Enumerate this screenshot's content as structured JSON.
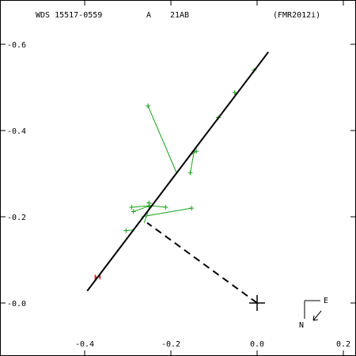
{
  "header": {
    "wds": "WDS 15517-0559",
    "component_letter": "A",
    "pair": "21AB",
    "reference": "(FMR2012i)"
  },
  "compass": {
    "east_label": "E",
    "north_label": "N"
  },
  "colors": {
    "orbit": "#000000",
    "observation": "#1aa01a",
    "outlier": "#e02020"
  },
  "chart_data": {
    "type": "scatter",
    "title": "",
    "xlabel": "",
    "ylabel": "",
    "xlim": [
      -0.6,
      0.22
    ],
    "ylim": [
      -0.12,
      0.68
    ],
    "xticks": [
      -0.4,
      -0.2,
      0.0,
      0.2
    ],
    "xtick_labels": [
      "-0.4",
      "-0.2",
      "0.0",
      "0.2"
    ],
    "yticks": [
      0.0,
      0.2,
      0.4,
      0.6
    ],
    "ytick_labels": [
      "-0.0",
      "-0.2",
      "-0.4",
      "-0.6"
    ],
    "grid": false,
    "orbit_segment": {
      "from": [
        -0.394,
        0.028
      ],
      "to": [
        0.026,
        0.582
      ]
    },
    "primary": [
      0.0,
      0.0
    ],
    "node_line": {
      "from": [
        0.0,
        0.0
      ],
      "to": [
        -0.255,
        0.186
      ]
    },
    "observations": [
      {
        "obs": [
          -0.37,
          0.06
        ],
        "fit": [
          -0.37,
          0.06
        ],
        "color": "red"
      },
      {
        "obs": [
          -0.304,
          0.168
        ],
        "fit": [
          -0.289,
          0.169
        ],
        "color": "green"
      },
      {
        "obs": [
          -0.291,
          0.222
        ],
        "fit": [
          -0.247,
          0.226
        ],
        "color": "green"
      },
      {
        "obs": [
          -0.287,
          0.212
        ],
        "fit": [
          -0.247,
          0.226
        ],
        "color": "green"
      },
      {
        "obs": [
          -0.212,
          0.222
        ],
        "fit": [
          -0.247,
          0.226
        ],
        "color": "green"
      },
      {
        "obs": [
          -0.152,
          0.22
        ],
        "fit": [
          -0.268,
          0.2
        ],
        "color": "green"
      },
      {
        "obs": [
          -0.249,
          0.223
        ],
        "fit": [
          -0.262,
          0.186
        ],
        "color": "green"
      },
      {
        "obs": [
          -0.251,
          0.232
        ],
        "fit": [
          -0.245,
          0.231
        ],
        "color": "green"
      },
      {
        "obs": [
          -0.253,
          0.457
        ],
        "fit": [
          -0.186,
          0.3
        ],
        "color": "green"
      },
      {
        "obs": [
          -0.155,
          0.302
        ],
        "fit": [
          -0.146,
          0.352
        ],
        "color": "green"
      },
      {
        "obs": [
          -0.141,
          0.352
        ],
        "fit": [
          -0.15,
          0.345
        ],
        "color": "green"
      },
      {
        "obs": [
          -0.09,
          0.43
        ],
        "fit": [
          -0.094,
          0.425
        ],
        "color": "green"
      },
      {
        "obs": [
          -0.052,
          0.488
        ],
        "fit": [
          -0.05,
          0.485
        ],
        "color": "green"
      },
      {
        "obs": [
          -0.007,
          0.54
        ],
        "fit": [
          -0.005,
          0.542
        ],
        "color": "green"
      }
    ]
  }
}
